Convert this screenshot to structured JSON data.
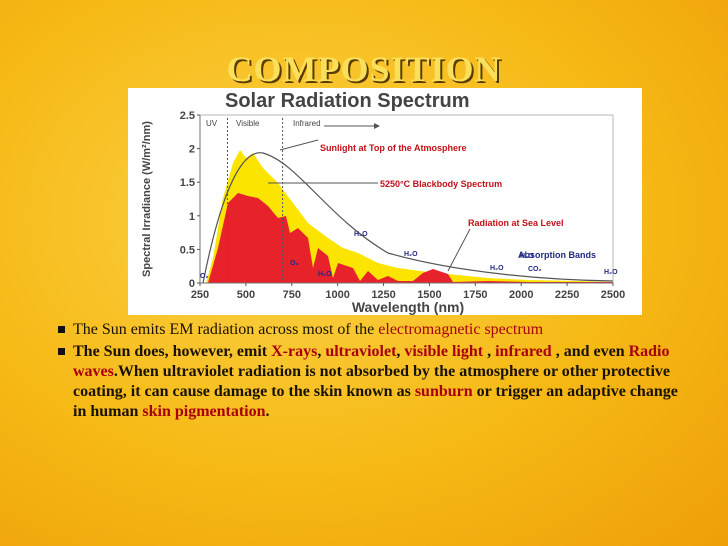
{
  "title": "COMPOSITION",
  "figure": {
    "title": "Solar Radiation Spectrum",
    "y_label": "Spectral Irradiance (W/m²/nm)",
    "x_label": "Wavelength (nm)",
    "xticks": [
      "250",
      "500",
      "750",
      "1000",
      "1250",
      "1500",
      "1750",
      "2000",
      "2250",
      "2500"
    ],
    "yticks": [
      "0",
      "0.5",
      "1",
      "1.5",
      "2",
      "2.5"
    ],
    "regions": [
      "UV",
      "Visible",
      "Infrared"
    ],
    "annotations": [
      "Sunlight at Top of the Atmosphere",
      "5250°C Blackbody Spectrum",
      "Radiation at Sea Level",
      "Absorption Bands"
    ],
    "molecules": [
      "O₂",
      "H₂O",
      "O₃",
      "H₂O",
      "H₂O",
      "H₂O",
      "H₂O",
      "CO₂",
      "H₂O"
    ]
  },
  "bullets": [
    [
      {
        "text": "The Sun emits EM radiation across most of the ",
        "link": false
      },
      {
        "text": "electromagnetic spectrum",
        "link": true
      }
    ],
    [
      {
        "text": "The Sun does, however, emit ",
        "link": false
      },
      {
        "text": "X-rays",
        "link": true
      },
      {
        "text": ", ",
        "link": false
      },
      {
        "text": "ultraviolet",
        "link": true
      },
      {
        "text": ", ",
        "link": false
      },
      {
        "text": "visible light",
        "link": true
      },
      {
        "text": " , ",
        "link": false
      },
      {
        "text": "infrared",
        "link": true
      },
      {
        "text": " , and even ",
        "link": false
      },
      {
        "text": "Radio waves",
        "link": true
      },
      {
        "text": ".When ultraviolet radiation is not absorbed by the atmosphere or other protective coating, it can cause damage to the skin known as ",
        "link": false
      },
      {
        "text": "sunburn",
        "link": true
      },
      {
        "text": " or trigger an adaptive change in human ",
        "link": false
      },
      {
        "text": "skin pigmentation",
        "link": true
      },
      {
        "text": ".",
        "link": false
      }
    ]
  ]
}
